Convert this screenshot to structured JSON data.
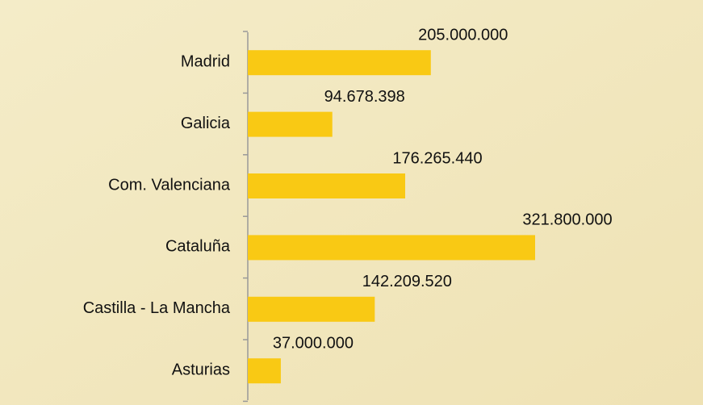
{
  "chart_data": {
    "type": "bar",
    "orientation": "horizontal",
    "categories": [
      "Madrid",
      "Galicia",
      "Com. Valenciana",
      "Cataluña",
      "Castilla - La Mancha",
      "Asturias"
    ],
    "values": [
      205000000,
      94678398,
      176265440,
      321800000,
      142209520,
      37000000
    ],
    "value_labels": [
      "205.000.000",
      "94.678.398",
      "176.265.440",
      "321.800.000",
      "142.209.520",
      "37.000.000"
    ],
    "color": "#f9c914"
  }
}
